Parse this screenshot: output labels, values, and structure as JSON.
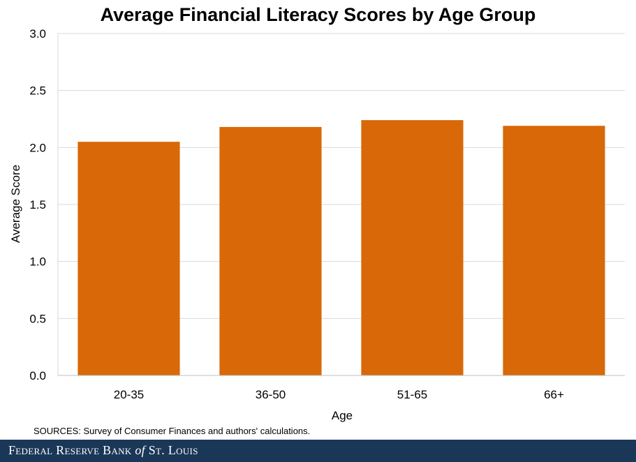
{
  "chart_data": {
    "type": "bar",
    "title": "Average Financial Literacy Scores by Age Group",
    "xlabel": "Age",
    "ylabel": "Average Score",
    "categories": [
      "20-35",
      "36-50",
      "51-65",
      "66+"
    ],
    "values": [
      2.05,
      2.18,
      2.24,
      2.19
    ],
    "ylim": [
      0,
      3.0
    ],
    "yticks": [
      "0.0",
      "0.5",
      "1.0",
      "1.5",
      "2.0",
      "2.5",
      "3.0"
    ],
    "grid": "horizontal",
    "bar_color": "#d86808"
  },
  "sources": "SOURCES: Survey of Consumer Finances and authors' calculations.",
  "footer": {
    "brand_part1": "Federal Reserve Bank ",
    "brand_of": "of",
    "brand_part2": " St. Louis",
    "background_color": "#1b3758"
  }
}
